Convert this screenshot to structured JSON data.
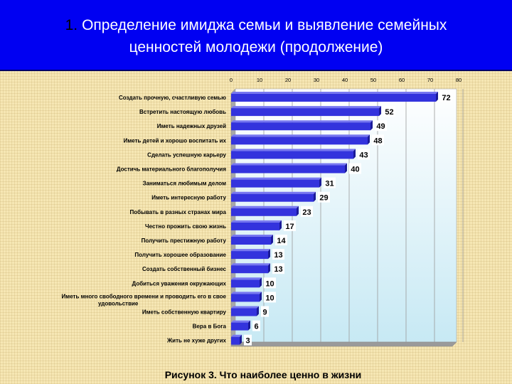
{
  "header": {
    "title_number": "1.",
    "title_line1": "Определение имиджа семьи и выявление семейных",
    "title_line2": "ценностей молодежи (продолжение)"
  },
  "caption": "Рисунок 3. Что наиболее ценно в жизни",
  "colors": {
    "header_bg": "#0000f2",
    "bar": "#3333dd",
    "plot_bg_top": "#ffffff",
    "plot_bg_bottom": "#c7e9f4",
    "page_bg": "#f6e7b4"
  },
  "chart_data": {
    "type": "bar",
    "orientation": "horizontal",
    "title": "Рисунок 3. Что наиболее ценно в жизни",
    "xlim": [
      0,
      80
    ],
    "ticks": [
      0,
      10,
      20,
      30,
      40,
      50,
      60,
      70,
      80
    ],
    "categories": [
      "Создать прочную,  счастливую семью",
      "Встретить настоящую любовь",
      "Иметь надежных друзей",
      "Иметь детей и хорошо воспитать их",
      "Сделать успешную карьеру",
      "Достичь материального благополучия",
      "Заниматься любимым делом",
      "Иметь интересную работу",
      "Побывать в разных странах мира",
      "Честно прожить свою жизнь",
      "Получить престижную работу",
      "Получить хорошее образование",
      "Создать собственный бизнес",
      "Добиться уважения окружающих",
      [
        "Иметь много свободного времени и проводить его в свое",
        "удовольствие"
      ],
      "Иметь собственную квартиру",
      "Вера в Бога",
      "Жить не хуже других"
    ],
    "values": [
      72,
      52,
      49,
      48,
      43,
      40,
      31,
      29,
      23,
      17,
      14,
      13,
      13,
      10,
      10,
      9,
      6,
      3
    ]
  }
}
